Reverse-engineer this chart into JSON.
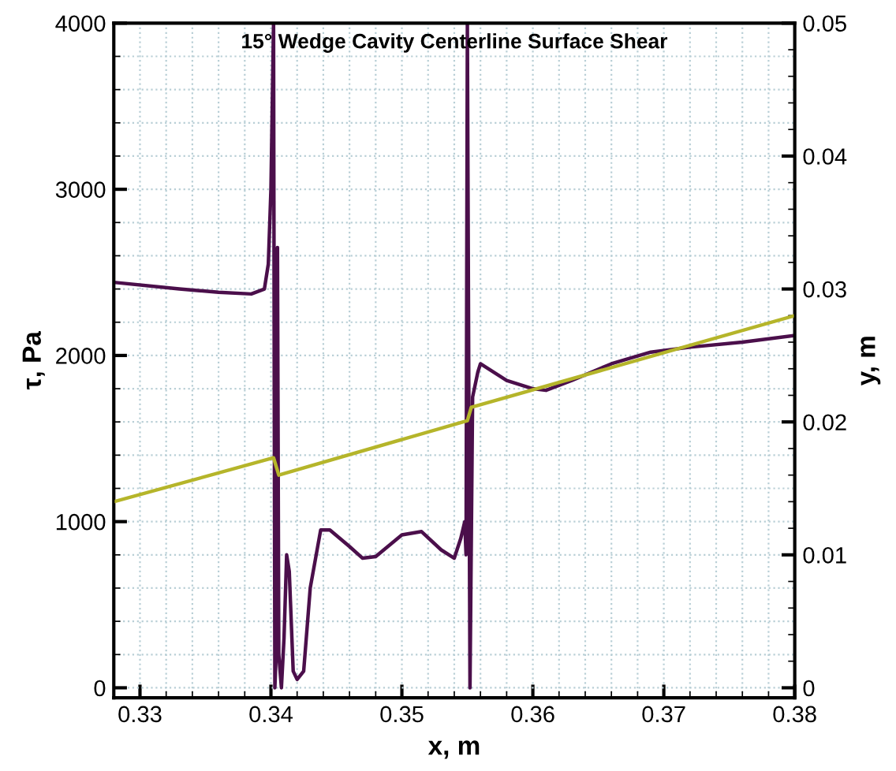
{
  "chart_data": {
    "type": "line",
    "title": "15° Wedge Cavity Centerline Surface Shear",
    "xlabel": "x, m",
    "ylabel": "τ, Pa",
    "y2label": "y, m",
    "xlim": [
      0.328,
      0.38
    ],
    "xticks": [
      0.33,
      0.34,
      0.35,
      0.36,
      0.37,
      0.38
    ],
    "ylim": [
      -60,
      4000
    ],
    "yticks": [
      0,
      1000,
      2000,
      3000,
      4000
    ],
    "y2lim": [
      -0.00075,
      0.05
    ],
    "y2ticks": [
      0,
      0.01,
      0.02,
      0.03,
      0.04,
      0.05
    ],
    "grid": true,
    "legend": false,
    "line_style": "solid",
    "marker": "none",
    "series": [
      {
        "color": "#4b0f4b",
        "x": [
          0.328,
          0.333,
          0.336,
          0.3385,
          0.3395,
          0.3398,
          0.34,
          0.3402,
          0.3403,
          0.3404,
          0.3405,
          0.3406,
          0.3408,
          0.341,
          0.3412,
          0.3414,
          0.3417,
          0.342,
          0.3425,
          0.343,
          0.3438,
          0.3445,
          0.346,
          0.347,
          0.348,
          0.35,
          0.3515,
          0.353,
          0.354,
          0.3545,
          0.3548,
          0.3549,
          0.355,
          0.3552,
          0.3554,
          0.3558,
          0.356,
          0.358,
          0.36,
          0.361,
          0.363,
          0.366,
          0.369,
          0.372,
          0.376,
          0.38
        ],
        "values": [
          2440,
          2400,
          2380,
          2370,
          2400,
          2550,
          3000,
          4000,
          0,
          200,
          2650,
          200,
          0,
          300,
          800,
          700,
          100,
          50,
          100,
          600,
          950,
          950,
          850,
          780,
          790,
          920,
          940,
          830,
          780,
          900,
          1000,
          800,
          4000,
          0,
          1750,
          1900,
          1950,
          1850,
          1800,
          1790,
          1850,
          1950,
          2020,
          2050,
          2080,
          2120
        ]
      },
      {
        "color": "#b5b52a",
        "axis": "y2",
        "x": [
          0.328,
          0.3402,
          0.3406,
          0.355,
          0.3553,
          0.38
        ],
        "values": [
          0.014,
          0.0173,
          0.016,
          0.0201,
          0.0211,
          0.028
        ]
      }
    ]
  }
}
